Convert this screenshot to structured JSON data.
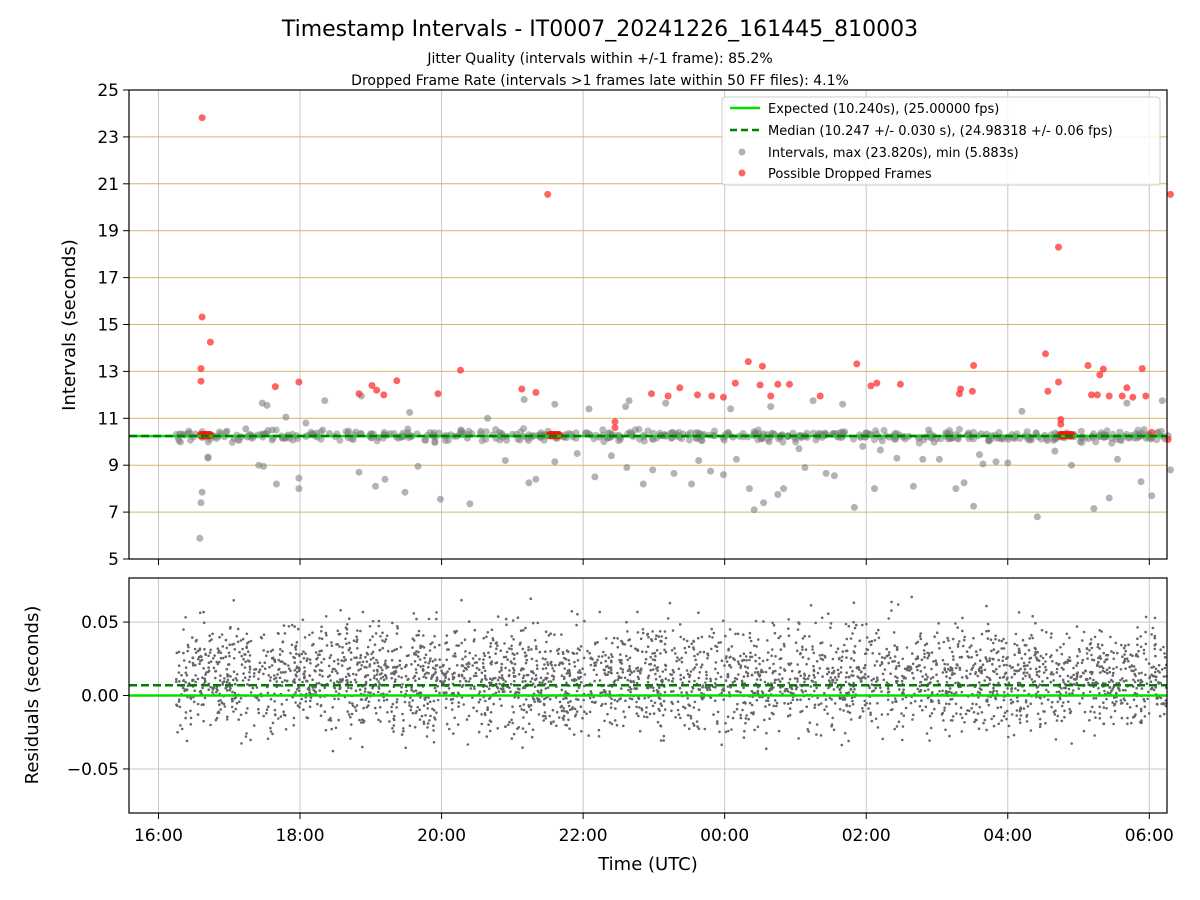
{
  "title": "Timestamp Intervals - IT0007_20241226_161445_810003",
  "subtitle_1": "Jitter Quality (intervals within +/-1 frame): 85.2%",
  "subtitle_2": "Dropped Frame Rate (intervals >1 frames late within 50 FF files): 4.1%",
  "colors": {
    "expected": "#00e000",
    "median": "#007f00",
    "intervals": "#808080",
    "dropped": "#ff3030",
    "residuals": "#666666",
    "hgrid_top": "#d2b86a",
    "grid": "#c8c8c8"
  },
  "chart_data": [
    {
      "type": "scatter",
      "panel": "intervals",
      "ylabel": "Intervals (seconds)",
      "xlabel": "",
      "ylim": [
        5,
        25
      ],
      "y_ticks": [
        "5",
        "7",
        "9",
        "11",
        "13",
        "15",
        "17",
        "19",
        "21",
        "23",
        "25"
      ],
      "xlim": [
        "2024-12-26 15:35",
        "2024-12-27 06:15"
      ],
      "grid": true,
      "legend_position": "top-right",
      "legend": [
        "Expected (10.240s), (25.00000 fps)",
        "Median (10.247 +/- 0.030 s), (24.98318 +/- 0.06 fps)",
        "Intervals, max (23.820s), min (5.883s)",
        "Possible Dropped Frames"
      ],
      "expected_line": 10.24,
      "median_line": 10.247,
      "series": [
        {
          "name": "Possible Dropped Frames",
          "x": [
            "16:37",
            "16:37",
            "16:36",
            "16:36",
            "16:44",
            "17:39",
            "17:59",
            "18:50",
            "19:01",
            "19:05",
            "19:11",
            "19:22",
            "19:57",
            "20:16",
            "21:08",
            "21:20",
            "21:30",
            "22:27",
            "22:27",
            "22:58",
            "23:12",
            "23:22",
            "23:37",
            "23:49",
            "23:59",
            "00:09",
            "00:20",
            "00:30",
            "00:32",
            "00:39",
            "00:45",
            "00:55",
            "01:21",
            "01:52",
            "02:04",
            "02:09",
            "02:29",
            "03:19",
            "03:20",
            "03:30",
            "03:31",
            "04:32",
            "04:34",
            "04:43",
            "04:43",
            "04:45",
            "04:45",
            "05:08",
            "05:11",
            "05:16",
            "05:18",
            "05:21",
            "05:26",
            "05:37",
            "05:41",
            "05:46",
            "05:54",
            "05:57",
            "06:02",
            "06:16",
            "06:18"
          ],
          "y": [
            23.82,
            15.32,
            13.12,
            12.58,
            14.25,
            12.35,
            12.55,
            12.05,
            12.4,
            12.2,
            12.0,
            12.6,
            12.05,
            13.05,
            12.25,
            12.1,
            20.55,
            10.85,
            10.6,
            12.05,
            11.95,
            12.3,
            12.0,
            11.95,
            11.9,
            12.5,
            13.42,
            12.42,
            13.22,
            11.95,
            12.45,
            12.45,
            11.95,
            13.32,
            12.38,
            12.5,
            12.45,
            12.05,
            12.25,
            12.15,
            13.25,
            13.75,
            12.15,
            18.3,
            12.55,
            10.95,
            10.75,
            13.25,
            12.0,
            12.0,
            12.85,
            13.1,
            11.95,
            11.95,
            12.3,
            11.9,
            13.12,
            11.95,
            10.4,
            10.1,
            20.55
          ]
        },
        {
          "name": "Intervals, max (23.820s), min (5.883s)",
          "x": [
            "16:35",
            "16:36",
            "16:37",
            "16:42",
            "16:42",
            "17:14",
            "17:25",
            "17:28",
            "17:29",
            "17:32",
            "17:40",
            "17:48",
            "17:59",
            "17:59",
            "18:05",
            "18:21",
            "18:50",
            "18:52",
            "19:04",
            "19:12",
            "19:29",
            "19:33",
            "19:40",
            "19:59",
            "20:24",
            "20:39",
            "20:54",
            "21:10",
            "21:14",
            "21:20",
            "21:36",
            "21:36",
            "21:55",
            "22:05",
            "22:10",
            "22:24",
            "22:36",
            "22:37",
            "22:39",
            "22:51",
            "22:59",
            "23:10",
            "23:17",
            "23:32",
            "23:38",
            "23:48",
            "23:59",
            "00:05",
            "00:10",
            "00:21",
            "00:25",
            "00:33",
            "00:39",
            "00:45",
            "00:50",
            "01:03",
            "01:08",
            "01:15",
            "01:26",
            "01:33",
            "01:40",
            "01:50",
            "01:57",
            "02:07",
            "02:12",
            "02:26",
            "02:40",
            "02:48",
            "02:53",
            "03:02",
            "03:16",
            "03:23",
            "03:31",
            "03:36",
            "03:39",
            "03:50",
            "04:00",
            "04:12",
            "04:25",
            "04:40",
            "04:54",
            "05:13",
            "05:26",
            "05:33",
            "05:41",
            "05:53",
            "06:02",
            "06:11",
            "06:18",
            "16:38",
            "16:58",
            "17:18",
            "17:45",
            "18:25",
            "18:59",
            "19:26",
            "19:53",
            "20:22",
            "20:49",
            "21:18",
            "21:45",
            "22:14",
            "22:41",
            "23:08",
            "23:39",
            "00:07",
            "00:36",
            "01:03",
            "01:32",
            "01:59",
            "02:28",
            "02:57",
            "03:26",
            "03:55",
            "04:24",
            "04:53",
            "05:22",
            "05:51",
            "06:16"
          ],
          "y": [
            5.883,
            7.4,
            7.85,
            9.35,
            9.3,
            10.55,
            9.0,
            11.65,
            8.95,
            11.55,
            8.2,
            11.05,
            8.45,
            8.0,
            10.8,
            11.75,
            8.7,
            11.95,
            8.1,
            8.4,
            7.85,
            11.25,
            8.95,
            7.55,
            7.35,
            11.0,
            9.2,
            11.8,
            8.25,
            8.4,
            9.15,
            11.6,
            9.5,
            11.4,
            8.5,
            9.4,
            11.5,
            8.9,
            11.75,
            8.2,
            8.8,
            11.65,
            8.65,
            8.2,
            9.2,
            8.75,
            8.6,
            11.4,
            9.25,
            8.0,
            7.1,
            7.4,
            11.5,
            7.75,
            8.0,
            9.7,
            8.9,
            11.75,
            8.65,
            8.55,
            11.6,
            7.2,
            9.8,
            8.0,
            9.65,
            9.3,
            8.1,
            9.25,
            10.5,
            9.25,
            8.0,
            8.25,
            7.25,
            9.45,
            9.05,
            9.15,
            9.1,
            11.3,
            6.8,
            9.6,
            9.0,
            7.15,
            7.6,
            9.25,
            11.65,
            8.3,
            7.7,
            11.75,
            8.8,
            10.2,
            10.45,
            10.3,
            10.15,
            10.35,
            10.25,
            10.2,
            10.3,
            10.15,
            10.4,
            10.25,
            10.3,
            10.2,
            10.35,
            10.25,
            10.3,
            10.2,
            10.3,
            10.25,
            10.35,
            10.2,
            10.3,
            10.25,
            10.3,
            10.2,
            10.35,
            10.25,
            10.3,
            10.2,
            10.25
          ]
        }
      ]
    },
    {
      "type": "scatter",
      "panel": "residuals",
      "ylabel": "Residuals (seconds)",
      "xlabel": "Time (UTC)",
      "ylim": [
        -0.08,
        0.08
      ],
      "y_ticks": [
        "−0.05",
        "0.00",
        "0.05"
      ],
      "y_tick_values": [
        -0.05,
        0.0,
        0.05
      ],
      "x_ticks": [
        "16:00",
        "18:00",
        "20:00",
        "22:00",
        "00:00",
        "02:00",
        "04:00",
        "06:00"
      ],
      "expected_line": 0.0,
      "median_line": 0.007,
      "grid": true,
      "series": [
        {
          "name": "",
          "x_range": [
            "16:15",
            "06:15"
          ],
          "y_center": 0.012,
          "y_spread": 0.03,
          "point_count": 3400
        }
      ]
    }
  ]
}
